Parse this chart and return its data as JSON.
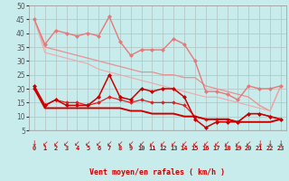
{
  "bg_color": "#c8ecec",
  "grid_color": "#b8c8c8",
  "xlabel": "Vent moyen/en rafales ( km/h )",
  "xlim": [
    -0.5,
    23.5
  ],
  "ylim": [
    5,
    50
  ],
  "yticks": [
    5,
    10,
    15,
    20,
    25,
    30,
    35,
    40,
    45,
    50
  ],
  "xticks": [
    0,
    1,
    2,
    3,
    4,
    5,
    6,
    7,
    8,
    9,
    10,
    11,
    12,
    13,
    14,
    15,
    16,
    17,
    18,
    19,
    20,
    21,
    22,
    23
  ],
  "lines": [
    {
      "x": [
        0,
        1,
        2,
        3,
        4,
        5,
        6,
        7,
        8,
        9,
        10,
        11,
        12,
        13,
        14,
        15,
        16,
        17,
        18,
        19,
        20,
        21,
        22,
        23
      ],
      "y": [
        45,
        36,
        41,
        40,
        39,
        40,
        39,
        46,
        37,
        32,
        34,
        34,
        34,
        38,
        36,
        30,
        19,
        19,
        18,
        16,
        21,
        20,
        20,
        21
      ],
      "color": "#e87878",
      "lw": 1.0,
      "marker": "D",
      "ms": 2.0,
      "zorder": 3
    },
    {
      "x": [
        0,
        1,
        2,
        3,
        4,
        5,
        6,
        7,
        8,
        9,
        10,
        11,
        12,
        13,
        14,
        15,
        16,
        17,
        18,
        19,
        20,
        21,
        22,
        23
      ],
      "y": [
        45,
        35,
        34,
        33,
        32,
        31,
        30,
        29,
        28,
        27,
        26,
        26,
        25,
        25,
        24,
        24,
        21,
        20,
        19,
        18,
        17,
        14,
        12,
        21
      ],
      "color": "#e89090",
      "lw": 0.9,
      "marker": null,
      "ms": 0,
      "zorder": 2
    },
    {
      "x": [
        0,
        1,
        2,
        3,
        4,
        5,
        6,
        7,
        8,
        9,
        10,
        11,
        12,
        13,
        14,
        15,
        16,
        17,
        18,
        19,
        20,
        21,
        22,
        23
      ],
      "y": [
        45,
        33,
        32,
        31,
        30,
        29,
        27,
        26,
        25,
        24,
        23,
        22,
        21,
        20,
        19,
        18,
        17,
        17,
        16,
        15,
        14,
        13,
        12,
        21
      ],
      "color": "#f0a8a8",
      "lw": 0.8,
      "marker": null,
      "ms": 0,
      "zorder": 2
    },
    {
      "x": [
        0,
        1,
        2,
        3,
        4,
        5,
        6,
        7,
        8,
        9,
        10,
        11,
        12,
        13,
        14,
        15,
        16,
        17,
        18,
        19,
        20,
        21,
        22,
        23
      ],
      "y": [
        21,
        14,
        16,
        14,
        14,
        14,
        17,
        25,
        17,
        16,
        20,
        19,
        20,
        20,
        17,
        9,
        6,
        8,
        8,
        8,
        11,
        11,
        10,
        9
      ],
      "color": "#cc0000",
      "lw": 1.1,
      "marker": "D",
      "ms": 2.0,
      "zorder": 4
    },
    {
      "x": [
        0,
        1,
        2,
        3,
        4,
        5,
        6,
        7,
        8,
        9,
        10,
        11,
        12,
        13,
        14,
        15,
        16,
        17,
        18,
        19,
        20,
        21,
        22,
        23
      ],
      "y": [
        20,
        14,
        16,
        15,
        15,
        14,
        15,
        17,
        16,
        15,
        16,
        15,
        15,
        15,
        14,
        10,
        9,
        9,
        9,
        8,
        11,
        11,
        10,
        9
      ],
      "color": "#dd2222",
      "lw": 0.9,
      "marker": "D",
      "ms": 1.8,
      "zorder": 3
    },
    {
      "x": [
        0,
        1,
        2,
        3,
        4,
        5,
        6,
        7,
        8,
        9,
        10,
        11,
        12,
        13,
        14,
        15,
        16,
        17,
        18,
        19,
        20,
        21,
        22,
        23
      ],
      "y": [
        20,
        13,
        13,
        13,
        13,
        13,
        13,
        13,
        13,
        12,
        12,
        11,
        11,
        11,
        10,
        10,
        9,
        9,
        9,
        8,
        8,
        8,
        8,
        9
      ],
      "color": "#cc0000",
      "lw": 1.4,
      "marker": null,
      "ms": 0,
      "zorder": 3
    }
  ],
  "arrows": [
    "↓",
    "↙",
    "↙",
    "↙",
    "↙",
    "↙",
    "↙",
    "↙",
    "↙",
    "↙",
    "↙",
    "↙",
    "↙",
    "↙",
    "↙",
    "↙",
    "↙",
    "↙",
    "↙",
    "↙",
    "↙",
    "↓",
    "↓",
    "↓"
  ]
}
